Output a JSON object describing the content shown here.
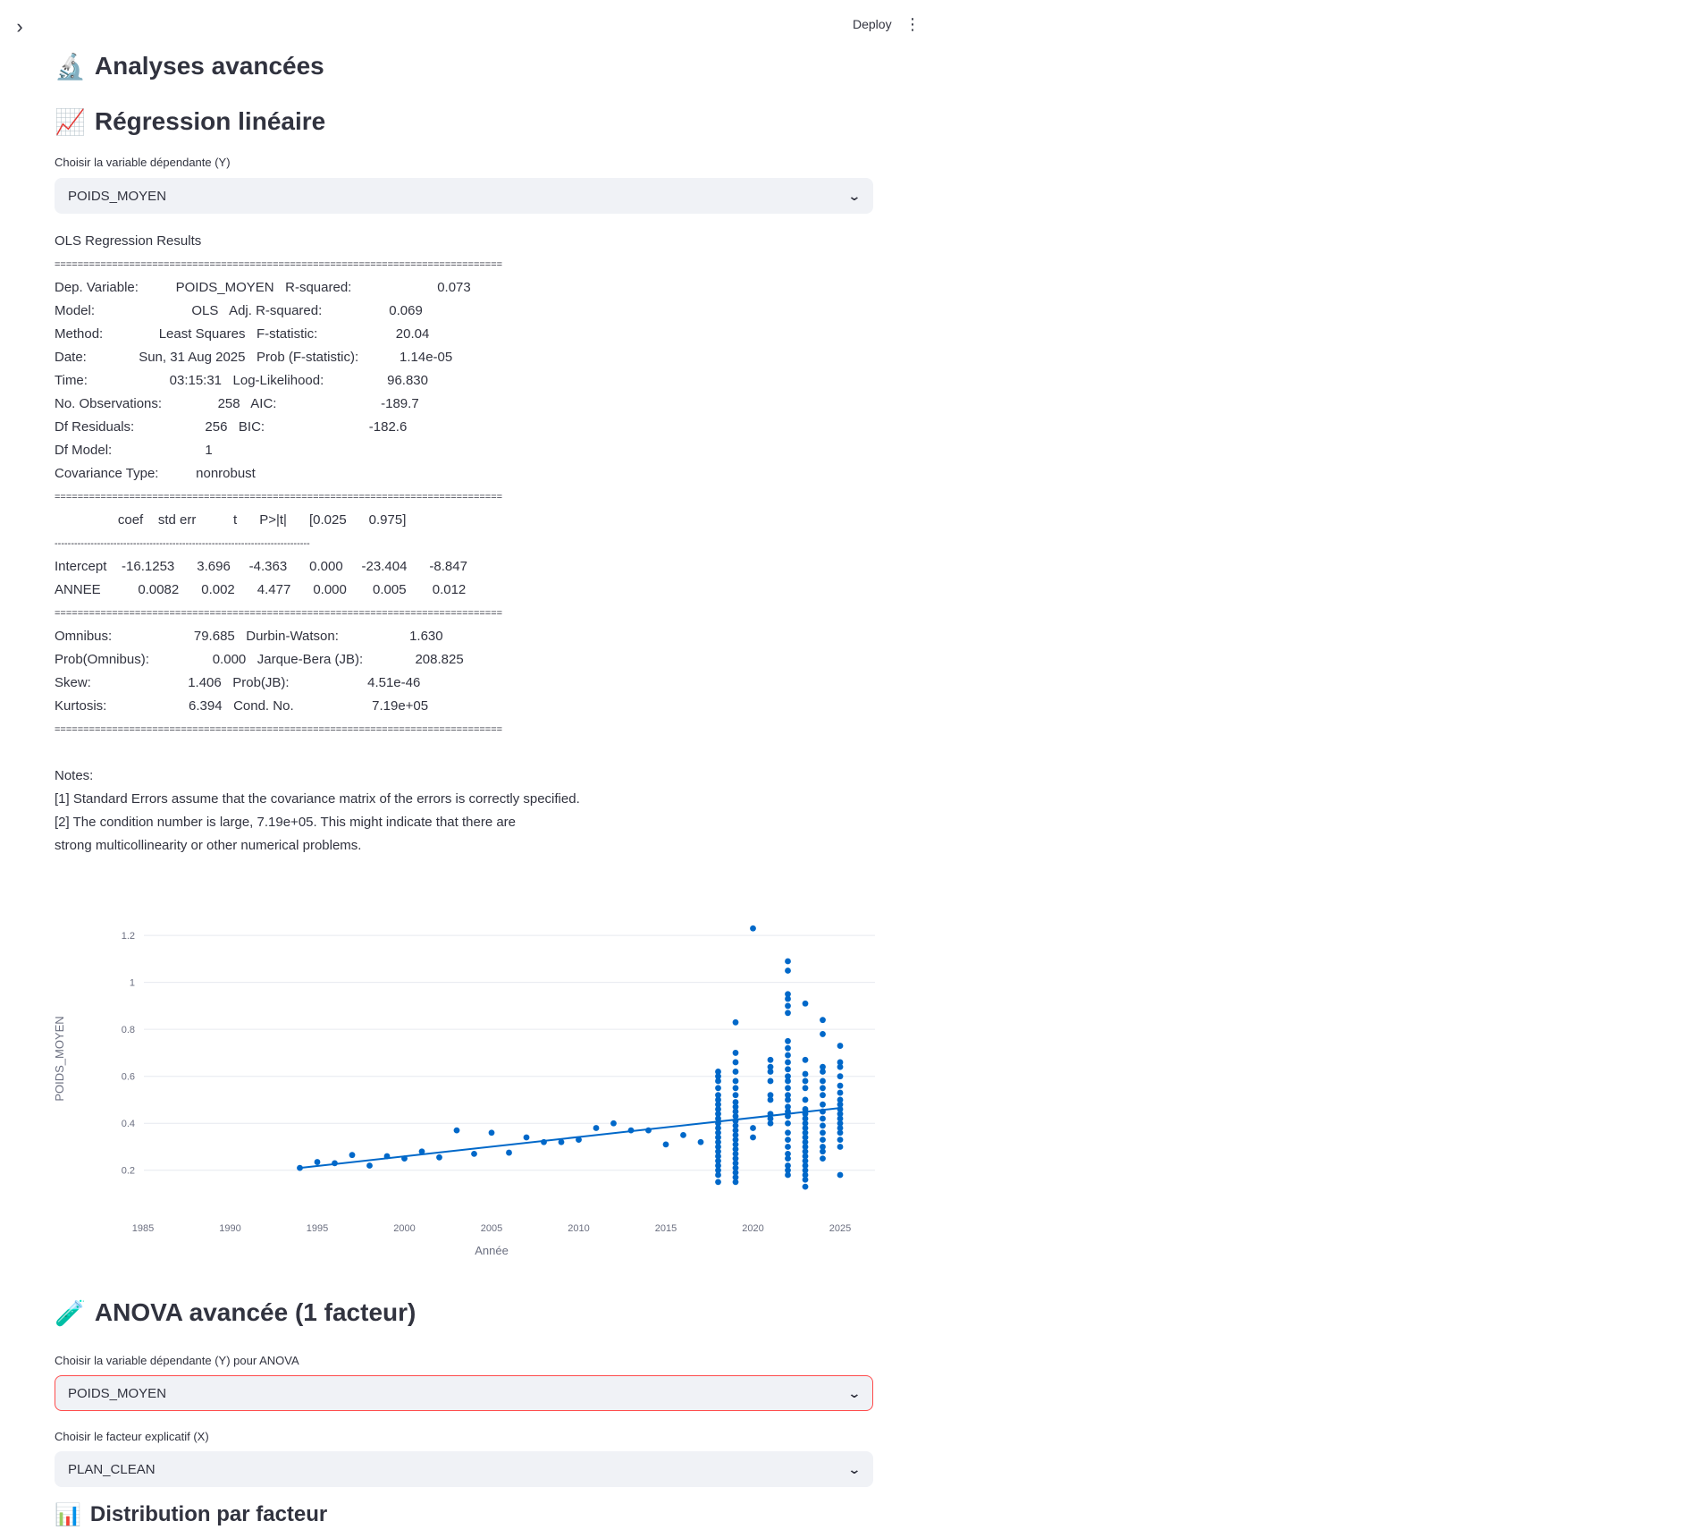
{
  "header": {
    "deploy_label": "Deploy",
    "menu_icon": "⋮",
    "expand_icon": "›"
  },
  "sections": {
    "analyses": {
      "icon": "🔬",
      "title": "Analyses avancées"
    },
    "regression": {
      "icon": "📈",
      "title": "Régression linéaire"
    },
    "anova": {
      "icon": "🧪",
      "title": "ANOVA avancée (1 facteur)"
    },
    "distribution": {
      "icon": "📊",
      "title": "Distribution par facteur"
    }
  },
  "regression_select": {
    "label": "Choisir la variable dépendante (Y)",
    "value": "POIDS_MOYEN"
  },
  "ols_summary": [
    "OLS Regression Results",
    "==============================================================================",
    "Dep. Variable:          POIDS_MOYEN   R-squared:                       0.073",
    "Model:                          OLS   Adj. R-squared:                  0.069",
    "Method:               Least Squares   F-statistic:                     20.04",
    "Date:              Sun, 31 Aug 2025   Prob (F-statistic):           1.14e-05",
    "Time:                      03:15:31   Log-Likelihood:                 96.830",
    "No. Observations:               258   AIC:                            -189.7",
    "Df Residuals:                   256   BIC:                            -182.6",
    "Df Model:                         1",
    "Covariance Type:          nonrobust",
    "==============================================================================",
    "                 coef    std err          t      P>|t|      [0.025      0.975]",
    "------------------------------------------------------------------------------",
    "Intercept    -16.1253      3.696     -4.363      0.000     -23.404      -8.847",
    "ANNEE          0.0082      0.002      4.477      0.000       0.005       0.012",
    "==============================================================================",
    "Omnibus:                      79.685   Durbin-Watson:                   1.630",
    "Prob(Omnibus):                 0.000   Jarque-Bera (JB):              208.825",
    "Skew:                          1.406   Prob(JB):                     4.51e-46",
    "Kurtosis:                      6.394   Cond. No.                     7.19e+05",
    "==============================================================================",
    "",
    "Notes:",
    "[1] Standard Errors assume that the covariance matrix of the errors is correctly specified.",
    "[2] The condition number is large, 7.19e+05. This might indicate that there are",
    "strong multicollinearity or other numerical problems."
  ],
  "anova_y_select": {
    "label": "Choisir la variable dépendante (Y) pour ANOVA",
    "value": "POIDS_MOYEN"
  },
  "anova_x_select": {
    "label": "Choisir le facteur explicatif (X)",
    "value": "PLAN_CLEAN"
  },
  "colors": {
    "accent": "#0068c9",
    "focus_border": "#ff4b4b",
    "select_bg": "#f0f2f6"
  },
  "chart_data": {
    "type": "scatter",
    "xlabel": "Année",
    "ylabel": "POIDS_MOYEN",
    "xlim": [
      1983,
      2027
    ],
    "ylim": [
      0.1,
      1.25
    ],
    "xticks": [
      1985,
      1990,
      1995,
      2000,
      2005,
      2010,
      2015,
      2020,
      2025
    ],
    "yticks": [
      0.2,
      0.4,
      0.6,
      0.8,
      1,
      1.2
    ],
    "ytick_labels": [
      "0.2",
      "0.4",
      "0.6",
      "0.8",
      "1",
      "1.2"
    ],
    "grid": true,
    "points": [
      [
        1994,
        0.21
      ],
      [
        1995,
        0.235
      ],
      [
        1996,
        0.23
      ],
      [
        1997,
        0.265
      ],
      [
        1998,
        0.22
      ],
      [
        1999,
        0.26
      ],
      [
        2000,
        0.25
      ],
      [
        2001,
        0.28
      ],
      [
        2002,
        0.255
      ],
      [
        2003,
        0.37
      ],
      [
        2004,
        0.27
      ],
      [
        2005,
        0.36
      ],
      [
        2006,
        0.275
      ],
      [
        2007,
        0.34
      ],
      [
        2008,
        0.32
      ],
      [
        2009,
        0.32
      ],
      [
        2010,
        0.33
      ],
      [
        2011,
        0.38
      ],
      [
        2012,
        0.4
      ],
      [
        2013,
        0.37
      ],
      [
        2014,
        0.37
      ],
      [
        2015,
        0.31
      ],
      [
        2016,
        0.35
      ],
      [
        2017,
        0.32
      ],
      [
        2020,
        1.23
      ],
      [
        2020,
        0.38
      ],
      [
        2020,
        0.34
      ],
      [
        2018,
        0.15
      ],
      [
        2018,
        0.18
      ],
      [
        2018,
        0.2
      ],
      [
        2018,
        0.22
      ],
      [
        2018,
        0.24
      ],
      [
        2018,
        0.26
      ],
      [
        2018,
        0.28
      ],
      [
        2018,
        0.3
      ],
      [
        2018,
        0.32
      ],
      [
        2018,
        0.34
      ],
      [
        2018,
        0.36
      ],
      [
        2018,
        0.38
      ],
      [
        2018,
        0.4
      ],
      [
        2018,
        0.42
      ],
      [
        2018,
        0.44
      ],
      [
        2018,
        0.46
      ],
      [
        2018,
        0.48
      ],
      [
        2018,
        0.5
      ],
      [
        2018,
        0.52
      ],
      [
        2018,
        0.55
      ],
      [
        2018,
        0.58
      ],
      [
        2018,
        0.6
      ],
      [
        2018,
        0.62
      ],
      [
        2019,
        0.15
      ],
      [
        2019,
        0.17
      ],
      [
        2019,
        0.19
      ],
      [
        2019,
        0.21
      ],
      [
        2019,
        0.23
      ],
      [
        2019,
        0.25
      ],
      [
        2019,
        0.27
      ],
      [
        2019,
        0.29
      ],
      [
        2019,
        0.31
      ],
      [
        2019,
        0.33
      ],
      [
        2019,
        0.35
      ],
      [
        2019,
        0.37
      ],
      [
        2019,
        0.39
      ],
      [
        2019,
        0.41
      ],
      [
        2019,
        0.43
      ],
      [
        2019,
        0.45
      ],
      [
        2019,
        0.47
      ],
      [
        2019,
        0.49
      ],
      [
        2019,
        0.52
      ],
      [
        2019,
        0.55
      ],
      [
        2019,
        0.58
      ],
      [
        2019,
        0.62
      ],
      [
        2019,
        0.66
      ],
      [
        2019,
        0.7
      ],
      [
        2019,
        0.83
      ],
      [
        2021,
        0.4
      ],
      [
        2021,
        0.42
      ],
      [
        2021,
        0.44
      ],
      [
        2021,
        0.5
      ],
      [
        2021,
        0.52
      ],
      [
        2021,
        0.58
      ],
      [
        2021,
        0.62
      ],
      [
        2021,
        0.64
      ],
      [
        2021,
        0.67
      ],
      [
        2022,
        0.18
      ],
      [
        2022,
        0.2
      ],
      [
        2022,
        0.22
      ],
      [
        2022,
        0.25
      ],
      [
        2022,
        0.27
      ],
      [
        2022,
        0.3
      ],
      [
        2022,
        0.33
      ],
      [
        2022,
        0.36
      ],
      [
        2022,
        0.4
      ],
      [
        2022,
        0.43
      ],
      [
        2022,
        0.45
      ],
      [
        2022,
        0.47
      ],
      [
        2022,
        0.5
      ],
      [
        2022,
        0.52
      ],
      [
        2022,
        0.55
      ],
      [
        2022,
        0.58
      ],
      [
        2022,
        0.6
      ],
      [
        2022,
        0.63
      ],
      [
        2022,
        0.66
      ],
      [
        2022,
        0.69
      ],
      [
        2022,
        0.72
      ],
      [
        2022,
        0.75
      ],
      [
        2022,
        0.87
      ],
      [
        2022,
        0.9
      ],
      [
        2022,
        0.93
      ],
      [
        2022,
        0.95
      ],
      [
        2022,
        1.05
      ],
      [
        2022,
        1.09
      ],
      [
        2023,
        0.13
      ],
      [
        2023,
        0.16
      ],
      [
        2023,
        0.18
      ],
      [
        2023,
        0.2
      ],
      [
        2023,
        0.22
      ],
      [
        2023,
        0.24
      ],
      [
        2023,
        0.26
      ],
      [
        2023,
        0.28
      ],
      [
        2023,
        0.3
      ],
      [
        2023,
        0.32
      ],
      [
        2023,
        0.34
      ],
      [
        2023,
        0.36
      ],
      [
        2023,
        0.38
      ],
      [
        2023,
        0.4
      ],
      [
        2023,
        0.42
      ],
      [
        2023,
        0.44
      ],
      [
        2023,
        0.46
      ],
      [
        2023,
        0.5
      ],
      [
        2023,
        0.55
      ],
      [
        2023,
        0.58
      ],
      [
        2023,
        0.61
      ],
      [
        2023,
        0.67
      ],
      [
        2023,
        0.91
      ],
      [
        2024,
        0.25
      ],
      [
        2024,
        0.28
      ],
      [
        2024,
        0.3
      ],
      [
        2024,
        0.33
      ],
      [
        2024,
        0.36
      ],
      [
        2024,
        0.39
      ],
      [
        2024,
        0.42
      ],
      [
        2024,
        0.45
      ],
      [
        2024,
        0.48
      ],
      [
        2024,
        0.52
      ],
      [
        2024,
        0.55
      ],
      [
        2024,
        0.58
      ],
      [
        2024,
        0.62
      ],
      [
        2024,
        0.64
      ],
      [
        2024,
        0.78
      ],
      [
        2024,
        0.84
      ],
      [
        2025,
        0.18
      ],
      [
        2025,
        0.3
      ],
      [
        2025,
        0.33
      ],
      [
        2025,
        0.36
      ],
      [
        2025,
        0.38
      ],
      [
        2025,
        0.4
      ],
      [
        2025,
        0.42
      ],
      [
        2025,
        0.44
      ],
      [
        2025,
        0.46
      ],
      [
        2025,
        0.48
      ],
      [
        2025,
        0.5
      ],
      [
        2025,
        0.53
      ],
      [
        2025,
        0.56
      ],
      [
        2025,
        0.6
      ],
      [
        2025,
        0.64
      ],
      [
        2025,
        0.66
      ],
      [
        2025,
        0.73
      ]
    ],
    "trendline": {
      "x": [
        1994,
        2025
      ],
      "y": [
        0.21,
        0.465
      ]
    }
  }
}
